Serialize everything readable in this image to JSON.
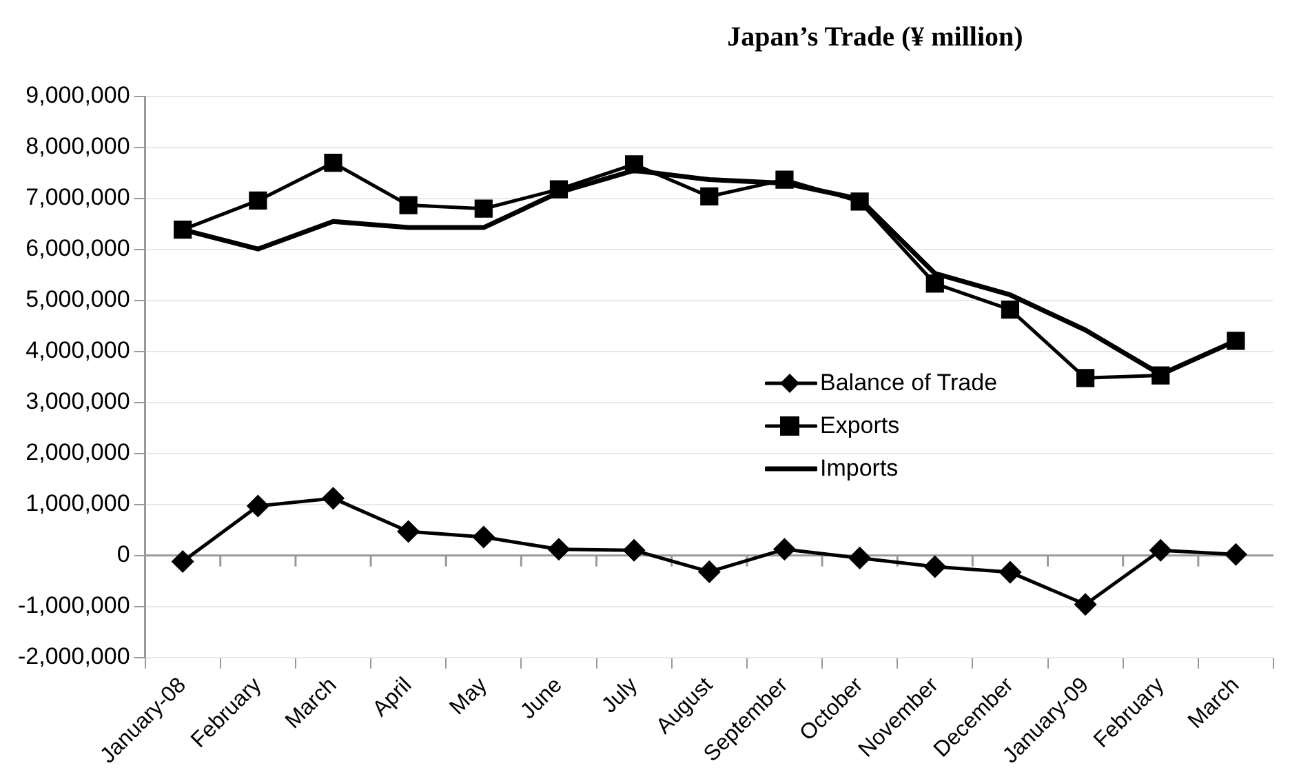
{
  "chart_data": {
    "type": "line",
    "title": "Japan’s Trade (¥ million)",
    "categories": [
      "January-08",
      "February",
      "March",
      "April",
      "May",
      "June",
      "July",
      "August",
      "September",
      "October",
      "November",
      "December",
      "January-09",
      "February",
      "March"
    ],
    "series": [
      {
        "name": "Balance of Trade",
        "color": "#000000",
        "marker": "diamond",
        "values": [
          -120000,
          970000,
          1120000,
          470000,
          360000,
          120000,
          100000,
          -320000,
          120000,
          -50000,
          -220000,
          -330000,
          -960000,
          100000,
          20000
        ]
      },
      {
        "name": "Exports",
        "color": "#000000",
        "marker": "square",
        "values": [
          6390000,
          6960000,
          7700000,
          6870000,
          6800000,
          7180000,
          7670000,
          7040000,
          7370000,
          6940000,
          5330000,
          4820000,
          3480000,
          3530000,
          4210000
        ]
      },
      {
        "name": "Imports",
        "color": "#000000",
        "marker": "none",
        "values": [
          6390000,
          6010000,
          6550000,
          6430000,
          6430000,
          7120000,
          7550000,
          7370000,
          7300000,
          6990000,
          5530000,
          5110000,
          4420000,
          3550000,
          4210000
        ]
      }
    ],
    "ylim": [
      -2000000,
      9000000
    ],
    "yticks": [
      {
        "value": -2000000,
        "label": "-2,000,000"
      },
      {
        "value": -1000000,
        "label": "-1,000,000"
      },
      {
        "value": 0,
        "label": "0"
      },
      {
        "value": 1000000,
        "label": "1,000,000"
      },
      {
        "value": 2000000,
        "label": "2,000,000"
      },
      {
        "value": 3000000,
        "label": "3,000,000"
      },
      {
        "value": 4000000,
        "label": "4,000,000"
      },
      {
        "value": 5000000,
        "label": "5,000,000"
      },
      {
        "value": 6000000,
        "label": "6,000,000"
      },
      {
        "value": 7000000,
        "label": "7,000,000"
      },
      {
        "value": 8000000,
        "label": "8,000,000"
      },
      {
        "value": 9000000,
        "label": "9,000,000"
      }
    ],
    "grid": "y",
    "legend": "right",
    "line_style": "solid"
  }
}
